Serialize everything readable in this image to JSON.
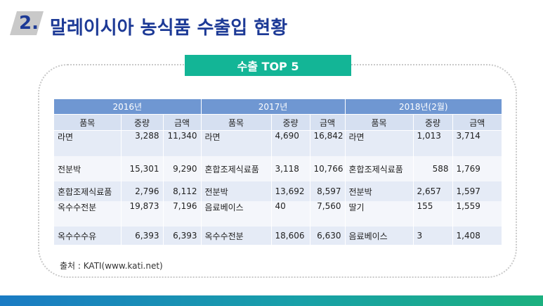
{
  "header": {
    "number": "2.",
    "title": "말레이시아 농식품 수출입 현황"
  },
  "section_label": "수출 TOP 5",
  "table": {
    "years": [
      "2016년",
      "2017년",
      "2018년(2월)"
    ],
    "columns": [
      "품목",
      "중량",
      "금액"
    ],
    "rows": [
      [
        "라면",
        "3,288",
        "11,340",
        "라면",
        "4,690",
        "16,842",
        "라면",
        "1,013",
        "3,714"
      ],
      [
        "전분박",
        "15,301",
        "9,290",
        "혼합조제식료품",
        "3,118",
        "10,766",
        "혼합조제식료품",
        "588",
        "1,769"
      ],
      [
        "혼합조제식료품",
        "2,796",
        "8,112",
        "전분박",
        "13,692",
        "8,597",
        "전분박",
        "2,657",
        "1,597"
      ],
      [
        "옥수수전분",
        "19,873",
        "7,196",
        "음료베이스",
        "40",
        "7,560",
        "딸기",
        "155",
        "1,559"
      ],
      [
        "옥수수수유",
        "6,393",
        "6,393",
        "옥수수전분",
        "18,606",
        "6,630",
        "음료베이스",
        "3",
        "1,408"
      ]
    ]
  },
  "source": "출처 : KATI(www.kati.net)",
  "colors": {
    "title": "#1d3a96",
    "label_bg": "#13b596",
    "header_bg": "#6f97d2",
    "subheader_bg": "#d6e0f1"
  }
}
